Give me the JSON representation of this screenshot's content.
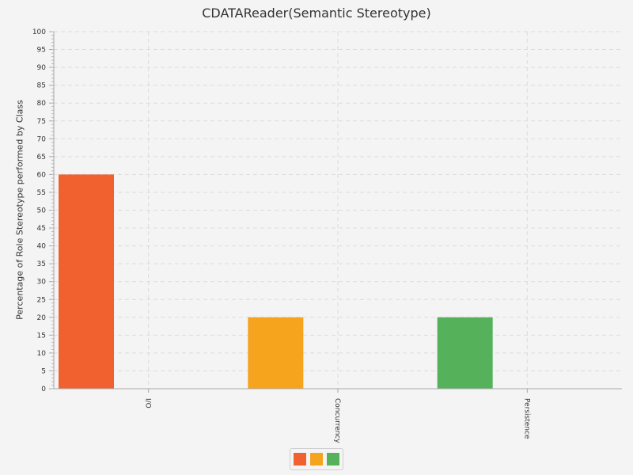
{
  "chart_data": {
    "type": "bar",
    "title": "CDATAReader(Semantic Stereotype)",
    "xlabel": "",
    "ylabel": "Percentage of Role Stereotype performed by Class",
    "categories": [
      "I/O",
      "Concurrency",
      "Persistence"
    ],
    "series": [
      {
        "values": [
          60,
          20,
          20
        ],
        "colors": [
          "#f0612f",
          "#f6a31e",
          "#55b25b"
        ]
      }
    ],
    "ylim": [
      0,
      100
    ],
    "y_major_step": 5,
    "grid": true,
    "legend_placement": "bottom-center"
  }
}
